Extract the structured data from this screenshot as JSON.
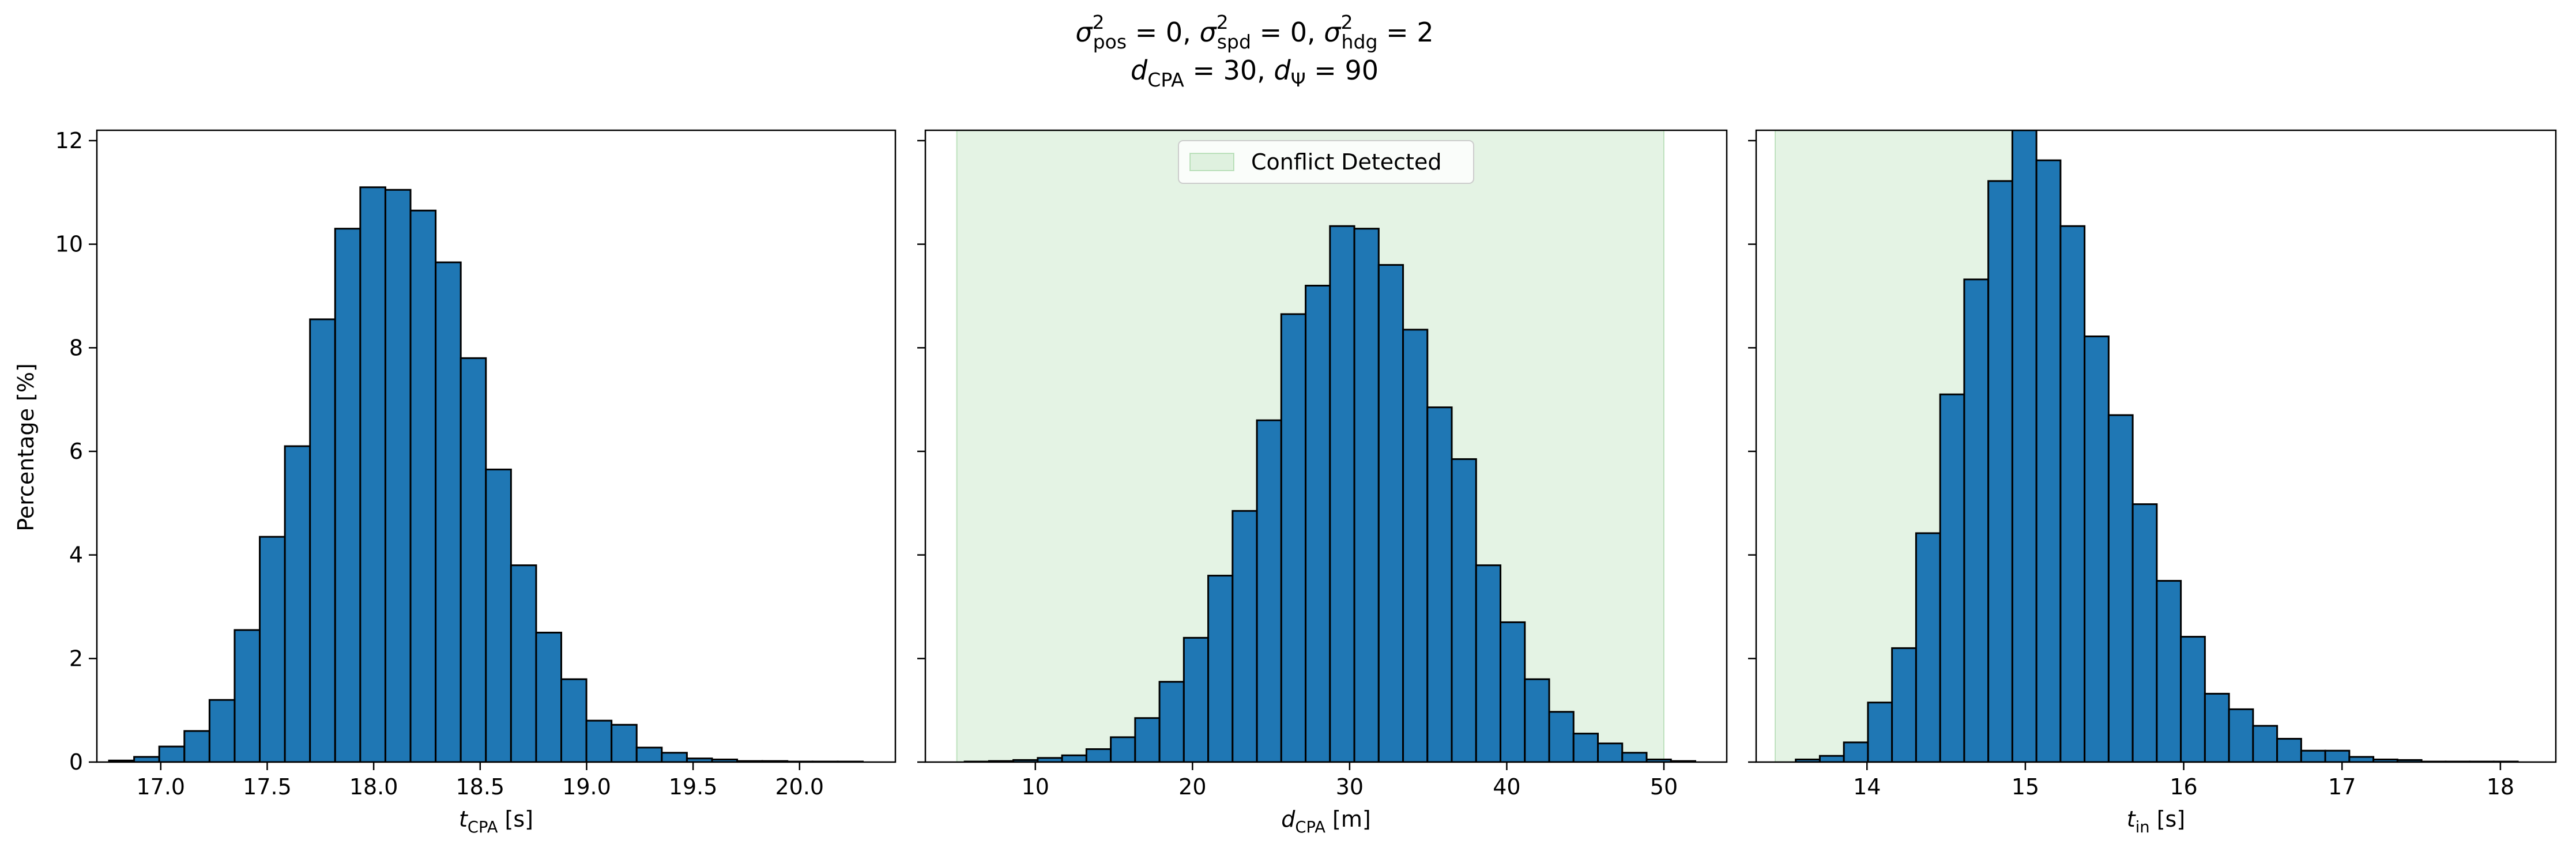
{
  "figure": {
    "title_lines": [
      [
        {
          "segments": [
            {
              "t": "σ"
            },
            {
              "t": "2",
              "sup": true
            },
            {
              "t": "pos",
              "sub": true,
              "hang": true
            },
            {
              "t": " = 0, "
            },
            {
              "t": "σ"
            },
            {
              "t": "2",
              "sup": true
            },
            {
              "t": "spd",
              "sub": true,
              "hang": true
            },
            {
              "t": " = 0, "
            },
            {
              "t": "σ"
            },
            {
              "t": "2",
              "sup": true
            },
            {
              "t": "hdg",
              "sub": true,
              "hang": true
            },
            {
              "t": " = 2"
            }
          ]
        }
      ],
      [
        {
          "segments": [
            {
              "t": "d"
            },
            {
              "t": "CPA",
              "sub": true
            },
            {
              "t": " = 30, "
            },
            {
              "t": "d"
            },
            {
              "t": "Ψ",
              "sub": true
            },
            {
              "t": " = 90"
            }
          ]
        }
      ]
    ],
    "ylabel": "Percentage [%]"
  },
  "chart_data": [
    {
      "type": "bar",
      "xlabel": [
        {
          "t": "t"
        },
        {
          "t": "CPA",
          "sub": true
        },
        {
          "t": " [s]"
        }
      ],
      "xlim": [
        16.7,
        20.45
      ],
      "ylim": [
        0,
        12.2
      ],
      "xticks": [
        17.0,
        17.5,
        18.0,
        18.5,
        19.0,
        19.5,
        20.0
      ],
      "xtick_labels": [
        "17.0",
        "17.5",
        "18.0",
        "18.5",
        "19.0",
        "19.5",
        "20.0"
      ],
      "yticks": [
        0,
        2,
        4,
        6,
        8,
        10,
        12
      ],
      "ytick_labels": [
        "0",
        "2",
        "4",
        "6",
        "8",
        "10",
        "12"
      ],
      "show_yticklabels": true,
      "bin_edges": [
        16.757,
        16.875,
        16.993,
        17.111,
        17.229,
        17.347,
        17.465,
        17.583,
        17.701,
        17.819,
        17.937,
        18.055,
        18.173,
        18.291,
        18.409,
        18.527,
        18.645,
        18.763,
        18.881,
        18.999,
        19.117,
        19.235,
        19.353,
        19.471,
        19.589,
        19.707,
        19.825,
        19.943,
        20.061,
        20.179,
        20.297
      ],
      "values": [
        0.03,
        0.1,
        0.3,
        0.6,
        1.2,
        2.55,
        4.35,
        6.1,
        8.55,
        10.3,
        11.1,
        11.05,
        10.65,
        9.65,
        7.8,
        5.65,
        3.8,
        2.5,
        1.6,
        0.8,
        0.72,
        0.28,
        0.18,
        0.07,
        0.05,
        0.02,
        0.02,
        0.01,
        0.01,
        0.01
      ],
      "shaded_region": null,
      "legend": null,
      "bar_color": "#1f77b4",
      "edge_color": "#000000"
    },
    {
      "type": "bar",
      "xlabel": [
        {
          "t": "d"
        },
        {
          "t": "CPA",
          "sub": true
        },
        {
          "t": " [m]"
        }
      ],
      "xlim": [
        3.0,
        54.0
      ],
      "ylim": [
        0,
        12.2
      ],
      "xticks": [
        10,
        20,
        30,
        40,
        50
      ],
      "xtick_labels": [
        "10",
        "20",
        "30",
        "40",
        "50"
      ],
      "yticks": [
        0,
        2,
        4,
        6,
        8,
        10,
        12
      ],
      "ytick_labels": [
        "0",
        "2",
        "4",
        "6",
        "8",
        "10",
        "12"
      ],
      "show_yticklabels": false,
      "bin_edges": [
        5.5,
        7.05,
        8.6,
        10.15,
        11.7,
        13.25,
        14.8,
        16.35,
        17.9,
        19.45,
        21.0,
        22.55,
        24.1,
        25.65,
        27.2,
        28.75,
        30.3,
        31.85,
        33.4,
        34.95,
        36.5,
        38.05,
        39.6,
        41.15,
        42.7,
        44.25,
        45.8,
        47.35,
        48.9,
        50.45,
        52.0
      ],
      "values": [
        0.01,
        0.02,
        0.04,
        0.08,
        0.13,
        0.25,
        0.48,
        0.85,
        1.55,
        2.4,
        3.6,
        4.85,
        6.6,
        8.65,
        9.2,
        10.35,
        10.3,
        9.6,
        8.35,
        6.85,
        5.85,
        3.8,
        2.7,
        1.6,
        0.97,
        0.55,
        0.36,
        0.18,
        0.05,
        0.02
      ],
      "shaded_region": {
        "x0": 5.0,
        "x1": 50.0,
        "color": "#2ca02c",
        "opacity": 0.13
      },
      "legend": {
        "label": "Conflict Detected",
        "placement": "upper center"
      },
      "bar_color": "#1f77b4",
      "edge_color": "#000000"
    },
    {
      "type": "bar",
      "xlabel": [
        {
          "t": "t"
        },
        {
          "t": "in",
          "sub": true
        },
        {
          "t": " [s]"
        }
      ],
      "xlim": [
        13.3,
        18.35
      ],
      "ylim": [
        0,
        12.2
      ],
      "xticks": [
        14,
        15,
        16,
        17,
        18
      ],
      "xtick_labels": [
        "14",
        "15",
        "16",
        "17",
        "18"
      ],
      "yticks": [
        0,
        2,
        4,
        6,
        8,
        10,
        12
      ],
      "ytick_labels": [
        "0",
        "2",
        "4",
        "6",
        "8",
        "10",
        "12"
      ],
      "show_yticklabels": false,
      "bin_edges": [
        13.55,
        13.702,
        13.854,
        14.006,
        14.158,
        14.31,
        14.462,
        14.614,
        14.766,
        14.918,
        15.07,
        15.222,
        15.374,
        15.526,
        15.678,
        15.83,
        15.982,
        16.134,
        16.286,
        16.438,
        16.59,
        16.742,
        16.894,
        17.046,
        17.198,
        17.35,
        17.502,
        17.654,
        17.806,
        17.958,
        18.11
      ],
      "values": [
        0.05,
        0.12,
        0.38,
        1.15,
        2.2,
        4.42,
        7.1,
        9.32,
        11.22,
        12.2,
        11.62,
        10.35,
        8.22,
        6.7,
        4.98,
        3.5,
        2.42,
        1.32,
        1.02,
        0.7,
        0.45,
        0.22,
        0.22,
        0.1,
        0.05,
        0.04,
        0.01,
        0.01,
        0.01,
        0.01
      ],
      "shaded_region": {
        "x0": 13.42,
        "x1": 14.95,
        "color": "#2ca02c",
        "opacity": 0.13
      },
      "legend": null,
      "bar_color": "#1f77b4",
      "edge_color": "#000000"
    }
  ]
}
